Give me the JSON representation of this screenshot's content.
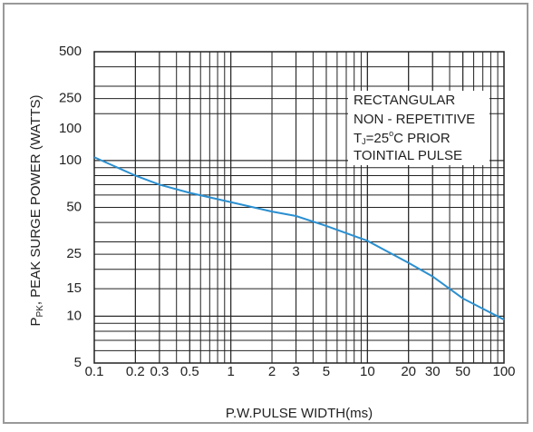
{
  "chart_data": {
    "type": "line",
    "log_x": true,
    "log_y": true,
    "grid": true,
    "minor_grid": true,
    "x_label": "P.W.PULSE  WIDTH(ms)",
    "y_label": {
      "main": "P",
      "sub": "PK",
      "rest": ", PEAK SURGE POWER (WATTS)"
    },
    "extra_y_label": "100",
    "annotation": [
      "RECTANGULAR",
      "NON - REPETITIVE",
      {
        "pre": "T",
        "sub": "J",
        "mid": "=25",
        "sup": "o",
        "post": "C PRIOR"
      },
      "TOINTIAL PULSE"
    ],
    "xlim": [
      0.1,
      100
    ],
    "xticks": [
      0.1,
      0.2,
      0.3,
      0.5,
      1,
      2,
      3,
      5,
      10,
      20,
      30,
      50,
      100
    ],
    "ylim": [
      5,
      500
    ],
    "yticks": [
      500,
      250,
      100,
      50,
      25,
      15,
      10,
      5
    ],
    "series": [
      {
        "color": "#2a8fd0",
        "x": [
          0.1,
          0.2,
          0.3,
          0.5,
          1,
          2,
          3,
          5,
          10,
          20,
          30,
          50,
          100
        ],
        "values": [
          105,
          80,
          70,
          62,
          54,
          47,
          44,
          38,
          30.5,
          22,
          18,
          13,
          9.5
        ]
      }
    ]
  }
}
